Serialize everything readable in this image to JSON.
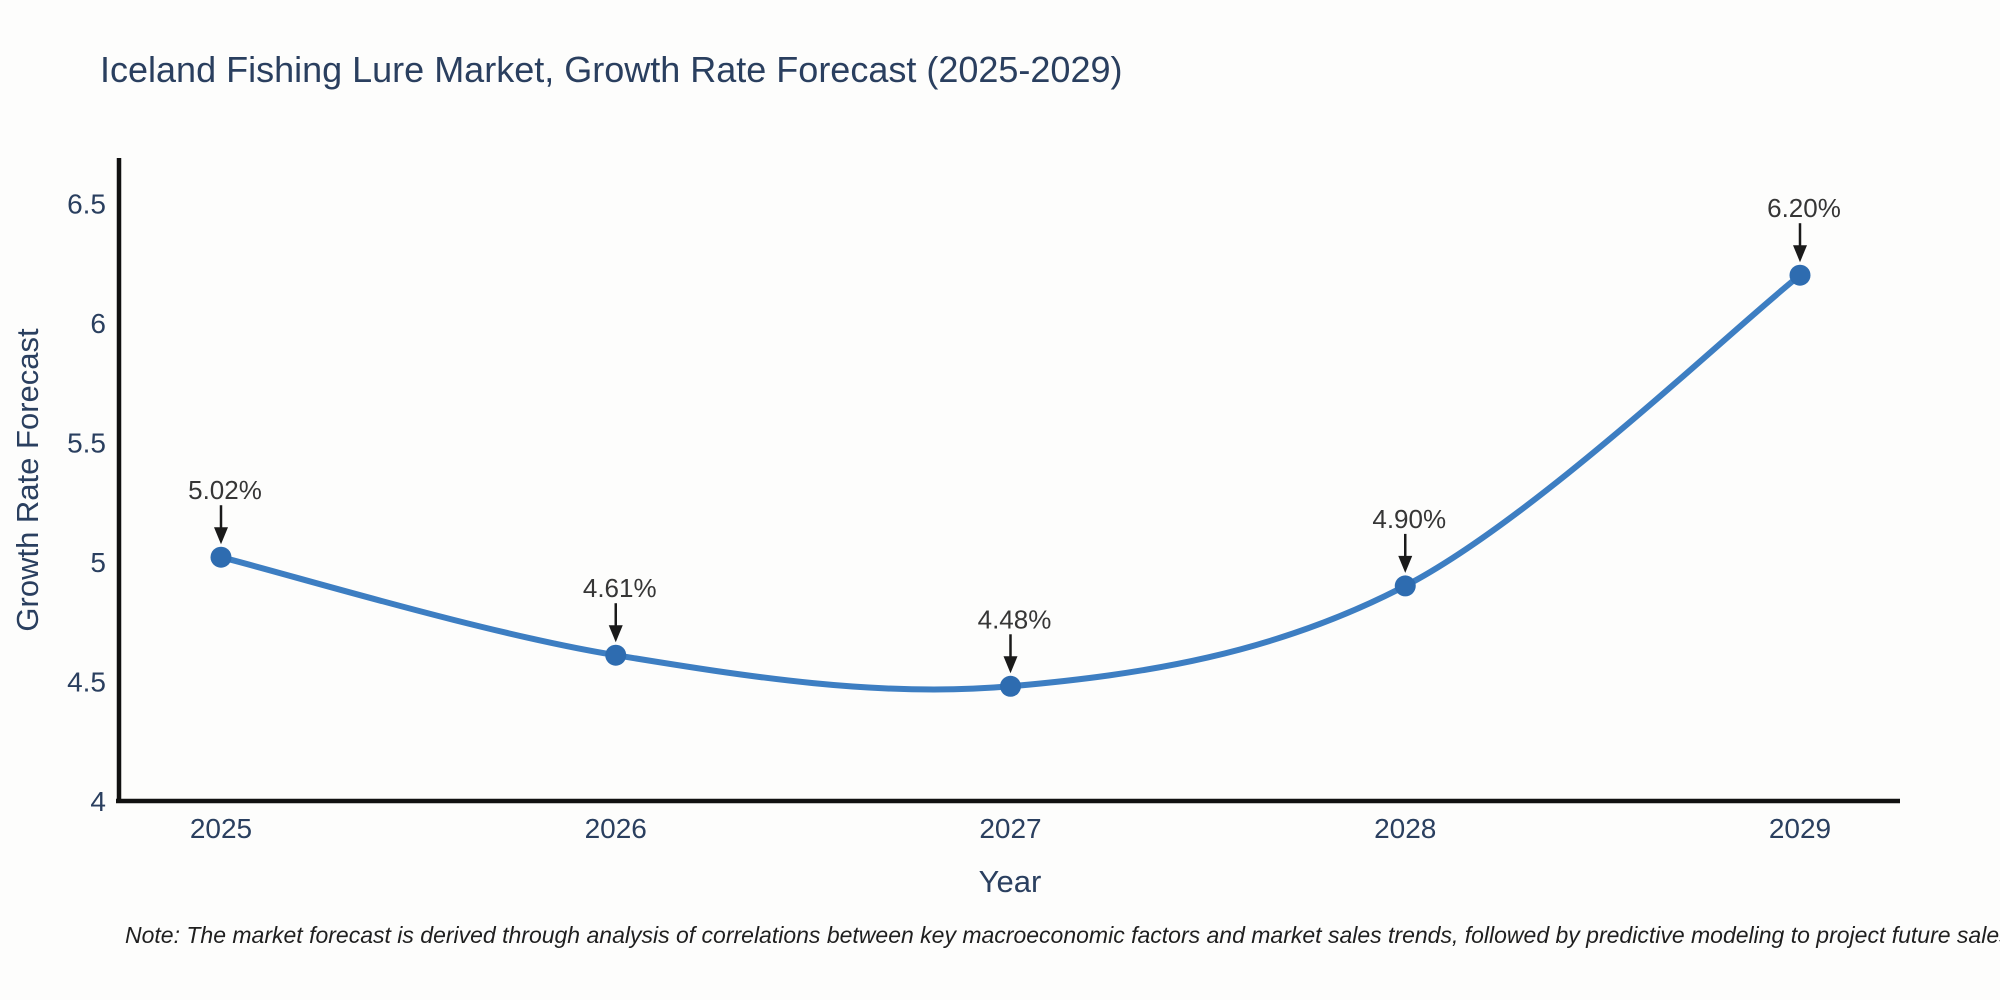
{
  "header": {
    "title": "Iceland Fishing Lure Market, Growth Rate Forecast (2025-2029)"
  },
  "footnote": {
    "text": "Note: The market forecast is derived through analysis of correlations between key macroeconomic factors and market sales trends, followed by predictive modeling to project future sales"
  },
  "chart_data": {
    "type": "line",
    "title": "Iceland Fishing Lure Market, Growth Rate Forecast (2025-2029)",
    "categories": [
      "2025",
      "2026",
      "2027",
      "2028",
      "2029"
    ],
    "series": [
      {
        "name": "Growth Rate Forecast",
        "values": [
          5.02,
          4.61,
          4.48,
          4.9,
          6.2
        ]
      }
    ],
    "point_labels": [
      "5.02%",
      "4.61%",
      "4.48%",
      "4.90%",
      "6.20%"
    ],
    "xlabel": "Year",
    "ylabel": "Growth Rate Forecast",
    "ylim": [
      4,
      6.5
    ],
    "yticks": [
      4,
      4.5,
      5,
      5.5,
      6,
      6.5
    ],
    "ytick_labels": [
      "4",
      "4.5",
      "5",
      "5.5",
      "6",
      "6.5"
    ],
    "grid": false,
    "legend_position": "none",
    "line_shape": "spline",
    "annotation_arrows": true,
    "colors": {
      "line": "#3d7ec2",
      "marker": "#2e6cb0",
      "axis": "#111111",
      "axis_text": "#2a3f5f",
      "annotation_text": "#363636",
      "arrow": "#1a1a1a",
      "background": "#fdfdfc"
    }
  }
}
